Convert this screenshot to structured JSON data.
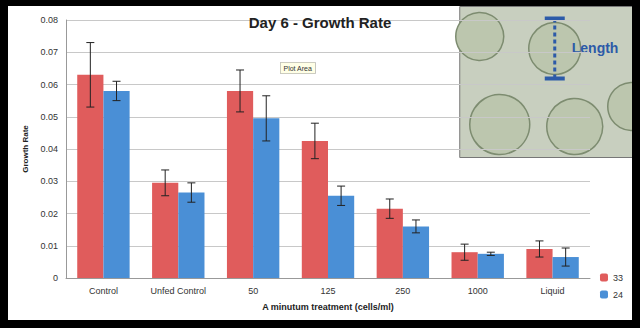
{
  "chart_data": {
    "type": "bar",
    "title": "Day 6 - Growth Rate",
    "x_label": "A minutum treatment (cells/ml)",
    "y_label": "Growth Rate",
    "categories": [
      "Control",
      "Unfed Control",
      "50",
      "125",
      "250",
      "1000",
      "Liquid"
    ],
    "series": [
      {
        "name": "33",
        "color": "#e05c5c",
        "values": [
          0.063,
          0.0295,
          0.058,
          0.0425,
          0.0215,
          0.008,
          0.009
        ],
        "errors": [
          0.01,
          0.004,
          0.0065,
          0.0055,
          0.003,
          0.0025,
          0.0025
        ]
      },
      {
        "name": "24",
        "color": "#4a8fd6",
        "values": [
          0.058,
          0.0265,
          0.0495,
          0.0255,
          0.016,
          0.0075,
          0.0065
        ],
        "errors": [
          0.003,
          0.003,
          0.007,
          0.003,
          0.002,
          0.0005,
          0.0028
        ]
      }
    ],
    "ylim": [
      0,
      0.08
    ],
    "yticks": [
      0,
      0.01,
      0.02,
      0.03,
      0.04,
      0.05,
      0.06,
      0.07,
      0.08
    ],
    "grid": true,
    "legend": "right",
    "annotations": [
      "Plot Area",
      "Length"
    ]
  }
}
